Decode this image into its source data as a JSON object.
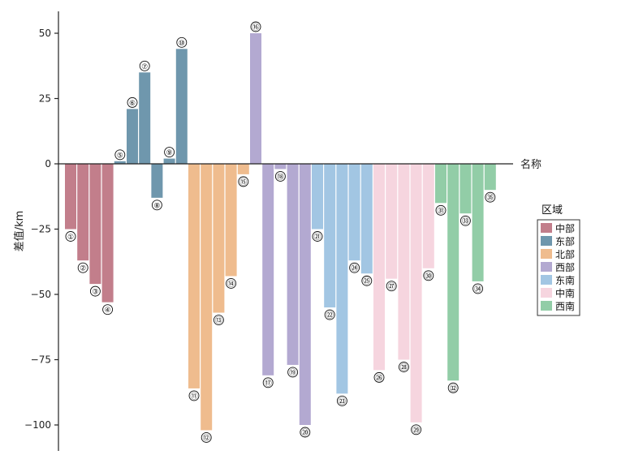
{
  "chart_data": {
    "type": "bar",
    "ylabel": "差值/km",
    "xlabel": "名称",
    "ylim": [
      -110,
      57
    ],
    "yticks": [
      50,
      25,
      0,
      -25,
      -50,
      -75,
      -100
    ],
    "categories": [
      "①",
      "②",
      "③",
      "④",
      "⑤",
      "⑥",
      "⑦",
      "⑧",
      "⑨",
      "⑩",
      "⑪",
      "⑫",
      "⑬",
      "⑭",
      "⑮",
      "⑯",
      "⑰",
      "⑱",
      "⑲",
      "⑳",
      "㉑",
      "㉒",
      "㉓",
      "㉔",
      "㉕",
      "㉖",
      "㉗",
      "㉘",
      "㉙",
      "㉚",
      "㉛",
      "㉜",
      "㉝",
      "㉞",
      "㉟"
    ],
    "values": [
      -25,
      -37,
      -46,
      -53,
      1,
      21,
      35,
      -13,
      2,
      44,
      -86,
      -102,
      -57,
      -43,
      -4,
      50,
      -81,
      -2,
      -77,
      -100,
      -25,
      -55,
      -88,
      -37,
      -42,
      -79,
      -44,
      -75,
      -99,
      -40,
      -15,
      -83,
      -19,
      -45,
      -10
    ],
    "groups": [
      0,
      0,
      0,
      0,
      1,
      1,
      1,
      1,
      1,
      1,
      2,
      2,
      2,
      2,
      2,
      3,
      3,
      3,
      3,
      3,
      4,
      4,
      4,
      4,
      4,
      5,
      5,
      5,
      5,
      5,
      6,
      6,
      6,
      6,
      6
    ],
    "legend": {
      "title": "区域",
      "placement": "right",
      "items": [
        {
          "name": "中部",
          "color": "#c27e8b"
        },
        {
          "name": "东部",
          "color": "#6f97ad"
        },
        {
          "name": "北部",
          "color": "#efbc8e"
        },
        {
          "name": "西部",
          "color": "#b3a9d1"
        },
        {
          "name": "东南",
          "color": "#a2c6e3"
        },
        {
          "name": "中南",
          "color": "#f6d5df"
        },
        {
          "name": "西南",
          "color": "#92cda7"
        }
      ]
    }
  }
}
